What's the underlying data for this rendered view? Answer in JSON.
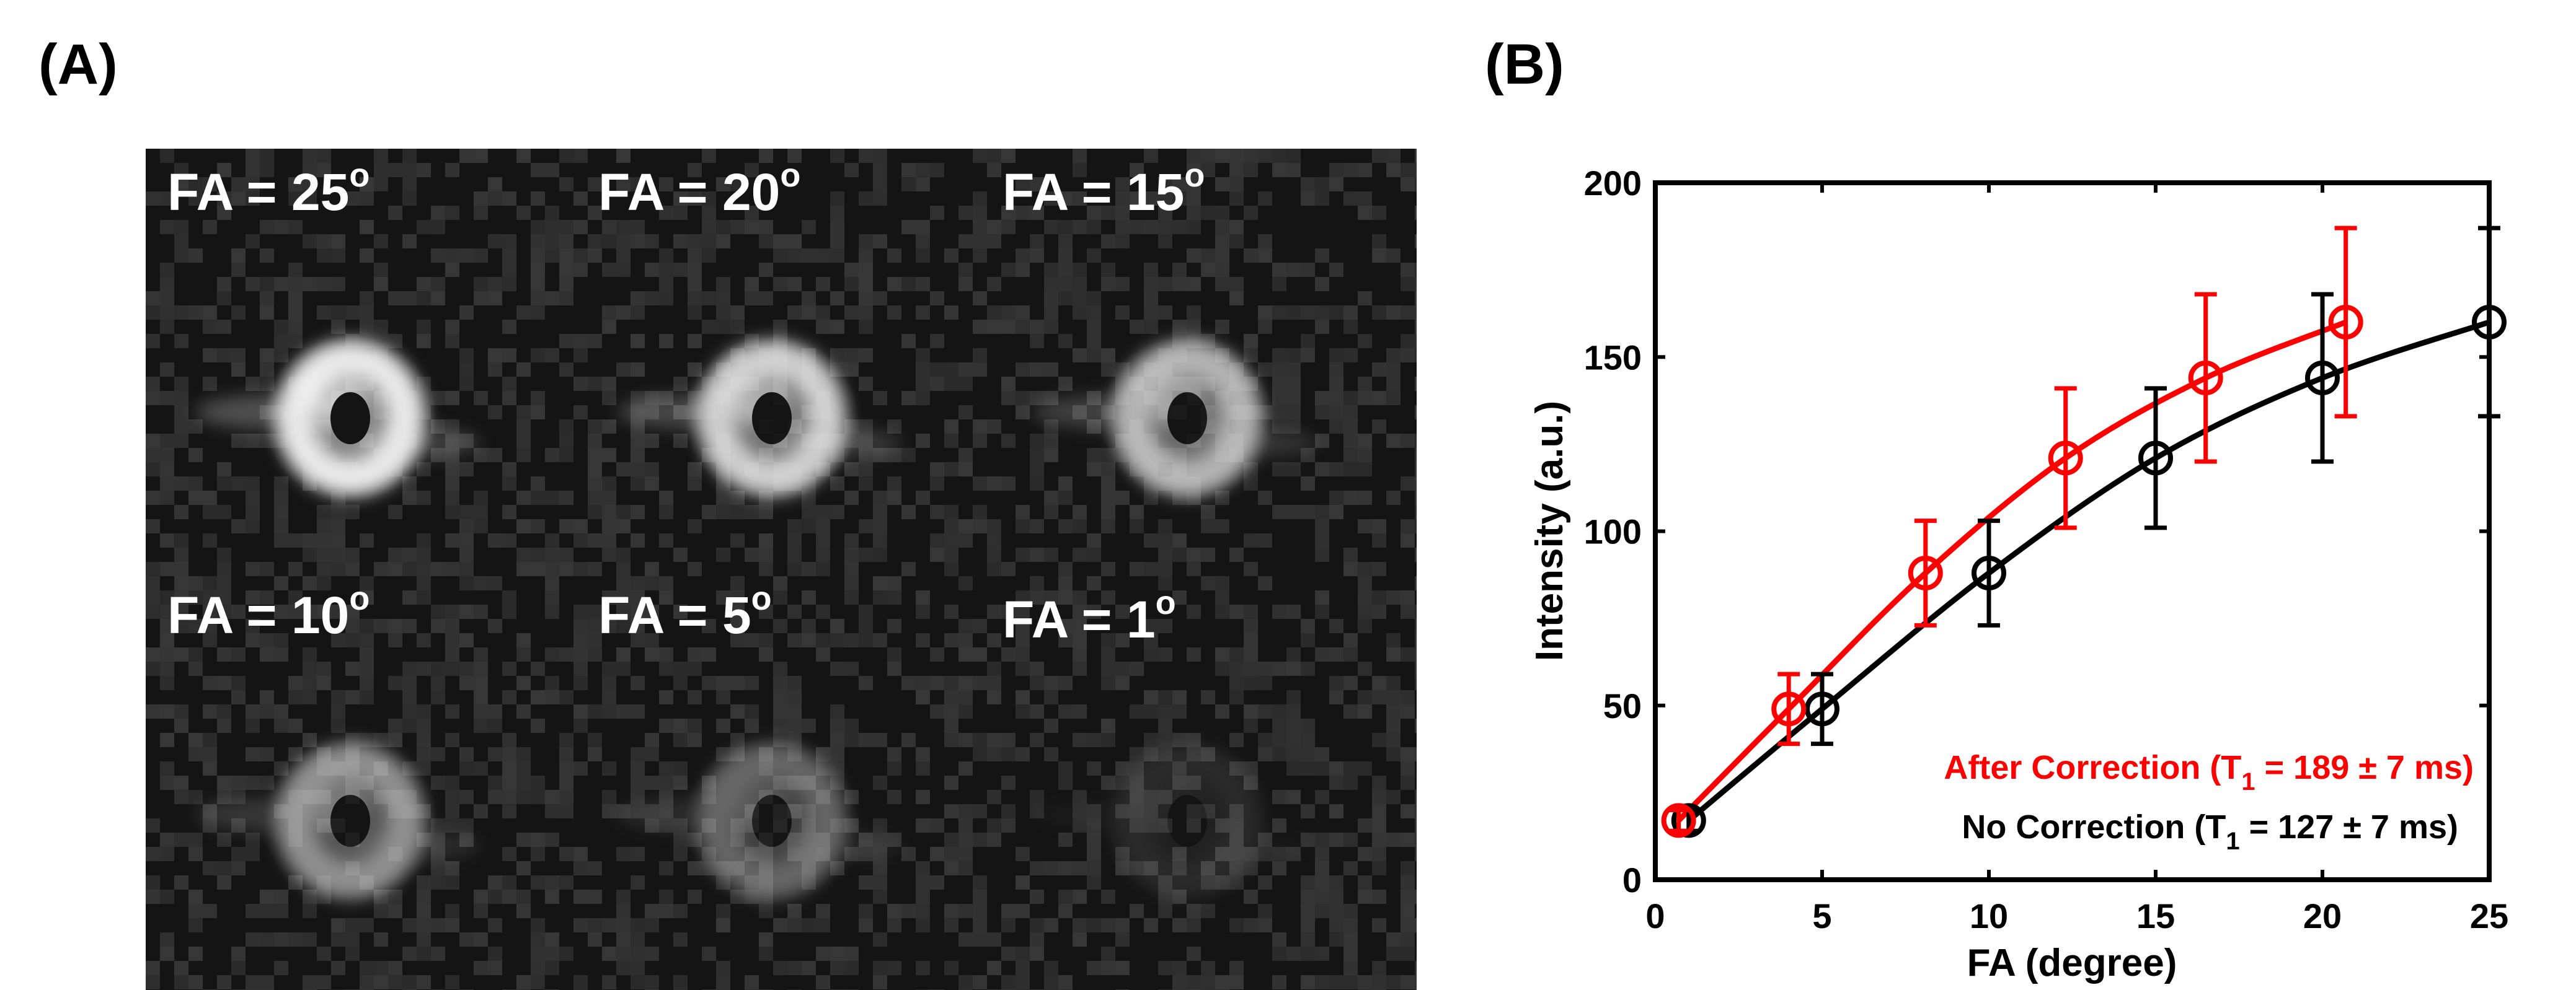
{
  "panels": {
    "a_label": "(A)",
    "b_label": "(B)"
  },
  "mri_panel": {
    "tiles": [
      {
        "prefix": "FA = ",
        "value": "25",
        "unit": "o",
        "brightness": 1.0
      },
      {
        "prefix": "FA = ",
        "value": "20",
        "unit": "o",
        "brightness": 0.88
      },
      {
        "prefix": "FA = ",
        "value": "15",
        "unit": "o",
        "brightness": 0.75
      },
      {
        "prefix": "FA = ",
        "value": "10",
        "unit": "o",
        "brightness": 0.58
      },
      {
        "prefix": "FA = ",
        "value": "5",
        "unit": "o",
        "brightness": 0.38
      },
      {
        "prefix": "FA = ",
        "value": "1",
        "unit": "o",
        "brightness": 0.1
      }
    ]
  },
  "chart_data": {
    "type": "line",
    "xlabel": "FA (degree)",
    "ylabel": "Intensity (a.u.)",
    "xlim": [
      0,
      25
    ],
    "ylim": [
      0,
      200
    ],
    "xticks": [
      0,
      5,
      10,
      15,
      20,
      25
    ],
    "yticks": [
      0,
      50,
      100,
      150,
      200
    ],
    "grid": false,
    "legend_position": "bottom-right",
    "series": [
      {
        "name": "After Correction",
        "legend_prefix": "After Correction (T",
        "legend_sub": "1",
        "legend_suffix": " = 189 ± 7 ms)",
        "color": "#ff0000",
        "x": [
          0.7,
          4.0,
          8.1,
          12.3,
          16.5,
          20.7
        ],
        "y": [
          17,
          49,
          88,
          121,
          144,
          160
        ],
        "err": [
          3,
          10,
          15,
          20,
          24,
          27
        ],
        "fit_T1_ms": 189
      },
      {
        "name": "No Correction",
        "legend_prefix": "No Correction (T",
        "legend_sub": "1",
        "legend_suffix": " = 127 ± 7 ms)",
        "color": "#000000",
        "x": [
          1,
          5,
          10,
          15,
          20,
          25
        ],
        "y": [
          17,
          49,
          88,
          121,
          144,
          160
        ],
        "err": [
          3,
          10,
          15,
          20,
          24,
          27
        ],
        "fit_T1_ms": 127
      }
    ]
  }
}
